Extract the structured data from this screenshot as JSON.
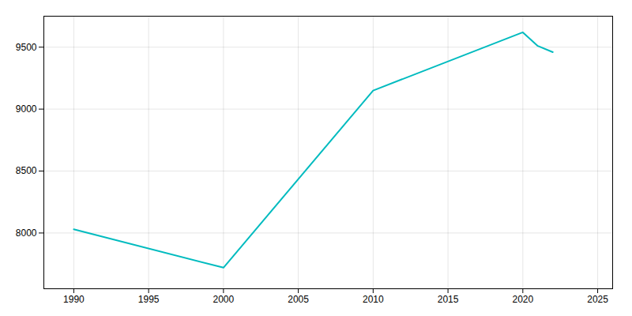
{
  "chart_data": {
    "type": "line",
    "x": [
      1990,
      2000,
      2010,
      2020,
      2021,
      2022
    ],
    "values": [
      8030,
      7720,
      9150,
      9620,
      9510,
      9460
    ],
    "color": "#00BBBF",
    "xlim": [
      1988,
      2026
    ],
    "ylim": [
      7550,
      9750
    ],
    "xticks": [
      1990,
      1995,
      2000,
      2005,
      2010,
      2015,
      2020,
      2025
    ],
    "yticks": [
      8000,
      8500,
      9000,
      9500
    ],
    "grid": true
  }
}
